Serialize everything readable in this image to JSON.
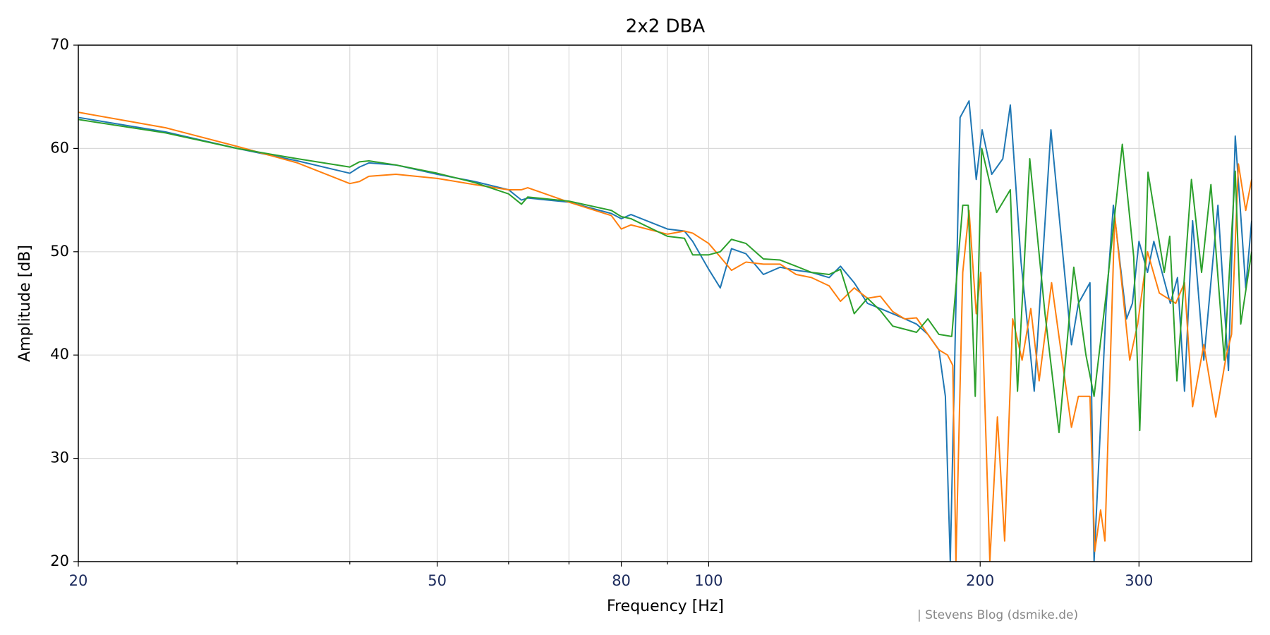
{
  "chart_data": {
    "type": "line",
    "title": "2x2 DBA",
    "xlabel": "Frequency [Hz]",
    "ylabel": "Amplitude [dB]",
    "annotation": "| Stevens Blog (dsmike.de)",
    "xscale": "log",
    "grid": true,
    "xlim": [
      20,
      400
    ],
    "xticks": [
      20,
      50,
      80,
      100,
      200,
      300
    ],
    "xminorticks": [
      30,
      40,
      60,
      70,
      90
    ],
    "ylim": [
      20,
      70
    ],
    "yticks": [
      20,
      30,
      40,
      50,
      60,
      70
    ],
    "series": [
      {
        "color": "#1f77b4",
        "x": [
          20,
          25,
          30,
          35,
          40,
          41,
          42,
          45,
          50,
          55,
          60,
          62,
          63,
          70,
          78,
          80,
          82,
          90,
          94,
          96,
          100,
          103,
          106,
          110,
          115,
          120,
          125,
          130,
          136,
          140,
          145,
          150,
          155,
          160,
          165,
          170,
          175,
          180,
          183,
          185.3,
          190,
          194.4,
          198,
          201,
          206,
          211.9,
          216,
          222,
          229.6,
          239.6,
          252.5,
          257,
          264.7,
          267.5,
          276,
          281,
          290.6,
          295,
          300,
          306.6,
          311.6,
          325,
          331,
          337,
          344,
          354,
          367,
          377,
          383.6,
          394,
          400
        ],
        "values": [
          63,
          61.6,
          60,
          58.8,
          57.6,
          58.2,
          58.6,
          58.4,
          57.5,
          56.8,
          56,
          55,
          55.2,
          54.8,
          53.7,
          53.2,
          53.6,
          52.2,
          52,
          51,
          48.3,
          46.5,
          50.3,
          49.8,
          47.8,
          48.5,
          48.2,
          48,
          47.5,
          48.6,
          47,
          45,
          44.5,
          44,
          43.5,
          43,
          42,
          40.5,
          36,
          20,
          63,
          64.6,
          57,
          61.8,
          57.5,
          59,
          64.2,
          49,
          36.5,
          61.8,
          41,
          45,
          47,
          20,
          45,
          54.5,
          43.5,
          45,
          51,
          48,
          51,
          45,
          47.5,
          36.5,
          53,
          39.5,
          54.5,
          38.5,
          61.2,
          46.5,
          53
        ]
      },
      {
        "color": "#ff7f0e",
        "x": [
          20,
          25,
          30,
          35,
          40,
          41,
          42,
          45,
          50,
          55,
          60,
          62,
          63,
          70,
          78,
          80,
          82,
          90,
          94,
          96,
          100,
          103,
          106,
          110,
          115,
          120,
          125,
          130,
          136,
          140,
          145,
          150,
          155,
          160,
          165,
          170,
          175,
          180,
          184,
          186.5,
          188,
          191.3,
          194.4,
          198,
          200.3,
          205,
          209,
          212.9,
          217.3,
          222.6,
          227.6,
          232.5,
          240,
          252.5,
          257,
          264.7,
          268,
          272,
          275,
          282,
          293,
          299,
          306.6,
          316,
          329.5,
          337,
          344,
          354,
          365,
          375,
          380,
          386.7,
          394,
          400
        ],
        "values": [
          63.5,
          62,
          60.2,
          58.6,
          56.6,
          56.8,
          57.3,
          57.5,
          57.1,
          56.5,
          56,
          56,
          56.2,
          54.8,
          53.5,
          52.2,
          52.6,
          51.7,
          52,
          51.8,
          50.8,
          49.5,
          48.2,
          49,
          48.8,
          48.8,
          47.8,
          47.5,
          46.7,
          45.2,
          46.5,
          45.5,
          45.7,
          44.2,
          43.5,
          43.6,
          42,
          40.5,
          40,
          39,
          20,
          48,
          54,
          44,
          48,
          20,
          34,
          22,
          43.5,
          39.5,
          44.5,
          37.5,
          47,
          33,
          36,
          36,
          21,
          25,
          22,
          53.5,
          39.5,
          43,
          50,
          46,
          45,
          47,
          35,
          41,
          34,
          40,
          42,
          58.5,
          54,
          57
        ]
      },
      {
        "color": "#2ca02c",
        "x": [
          20,
          25,
          30,
          35,
          40,
          41,
          42,
          45,
          50,
          55,
          60,
          62,
          63,
          70,
          78,
          80,
          82,
          90,
          94,
          96,
          100,
          103,
          106,
          110,
          115,
          120,
          125,
          130,
          136,
          140,
          145,
          150,
          155,
          160,
          165,
          170,
          175,
          180,
          186,
          191.3,
          194,
          197.5,
          200.8,
          208.6,
          216,
          220,
          227,
          236,
          244.6,
          254,
          262,
          267.5,
          276,
          287.5,
          296,
          300.6,
          307,
          320,
          324.5,
          330.5,
          343,
          352,
          360.5,
          373,
          383.6,
          389,
          400
        ],
        "values": [
          62.8,
          61.5,
          60,
          59,
          58.2,
          58.7,
          58.8,
          58.4,
          57.6,
          56.7,
          55.6,
          54.6,
          55.3,
          54.9,
          54,
          53.4,
          53.2,
          51.5,
          51.3,
          49.7,
          49.7,
          50,
          51.2,
          50.8,
          49.3,
          49.2,
          48.6,
          48,
          47.8,
          48.3,
          44,
          45.5,
          44.3,
          42.8,
          42.5,
          42.2,
          43.5,
          42,
          41.8,
          54.5,
          54.5,
          36,
          60,
          53.8,
          56,
          36.5,
          59,
          44,
          32.5,
          48.5,
          40,
          36,
          46,
          60.4,
          49.5,
          32.7,
          57.7,
          48,
          51.5,
          37.5,
          57,
          48,
          56.5,
          39.5,
          57.8,
          43,
          50
        ]
      }
    ]
  }
}
